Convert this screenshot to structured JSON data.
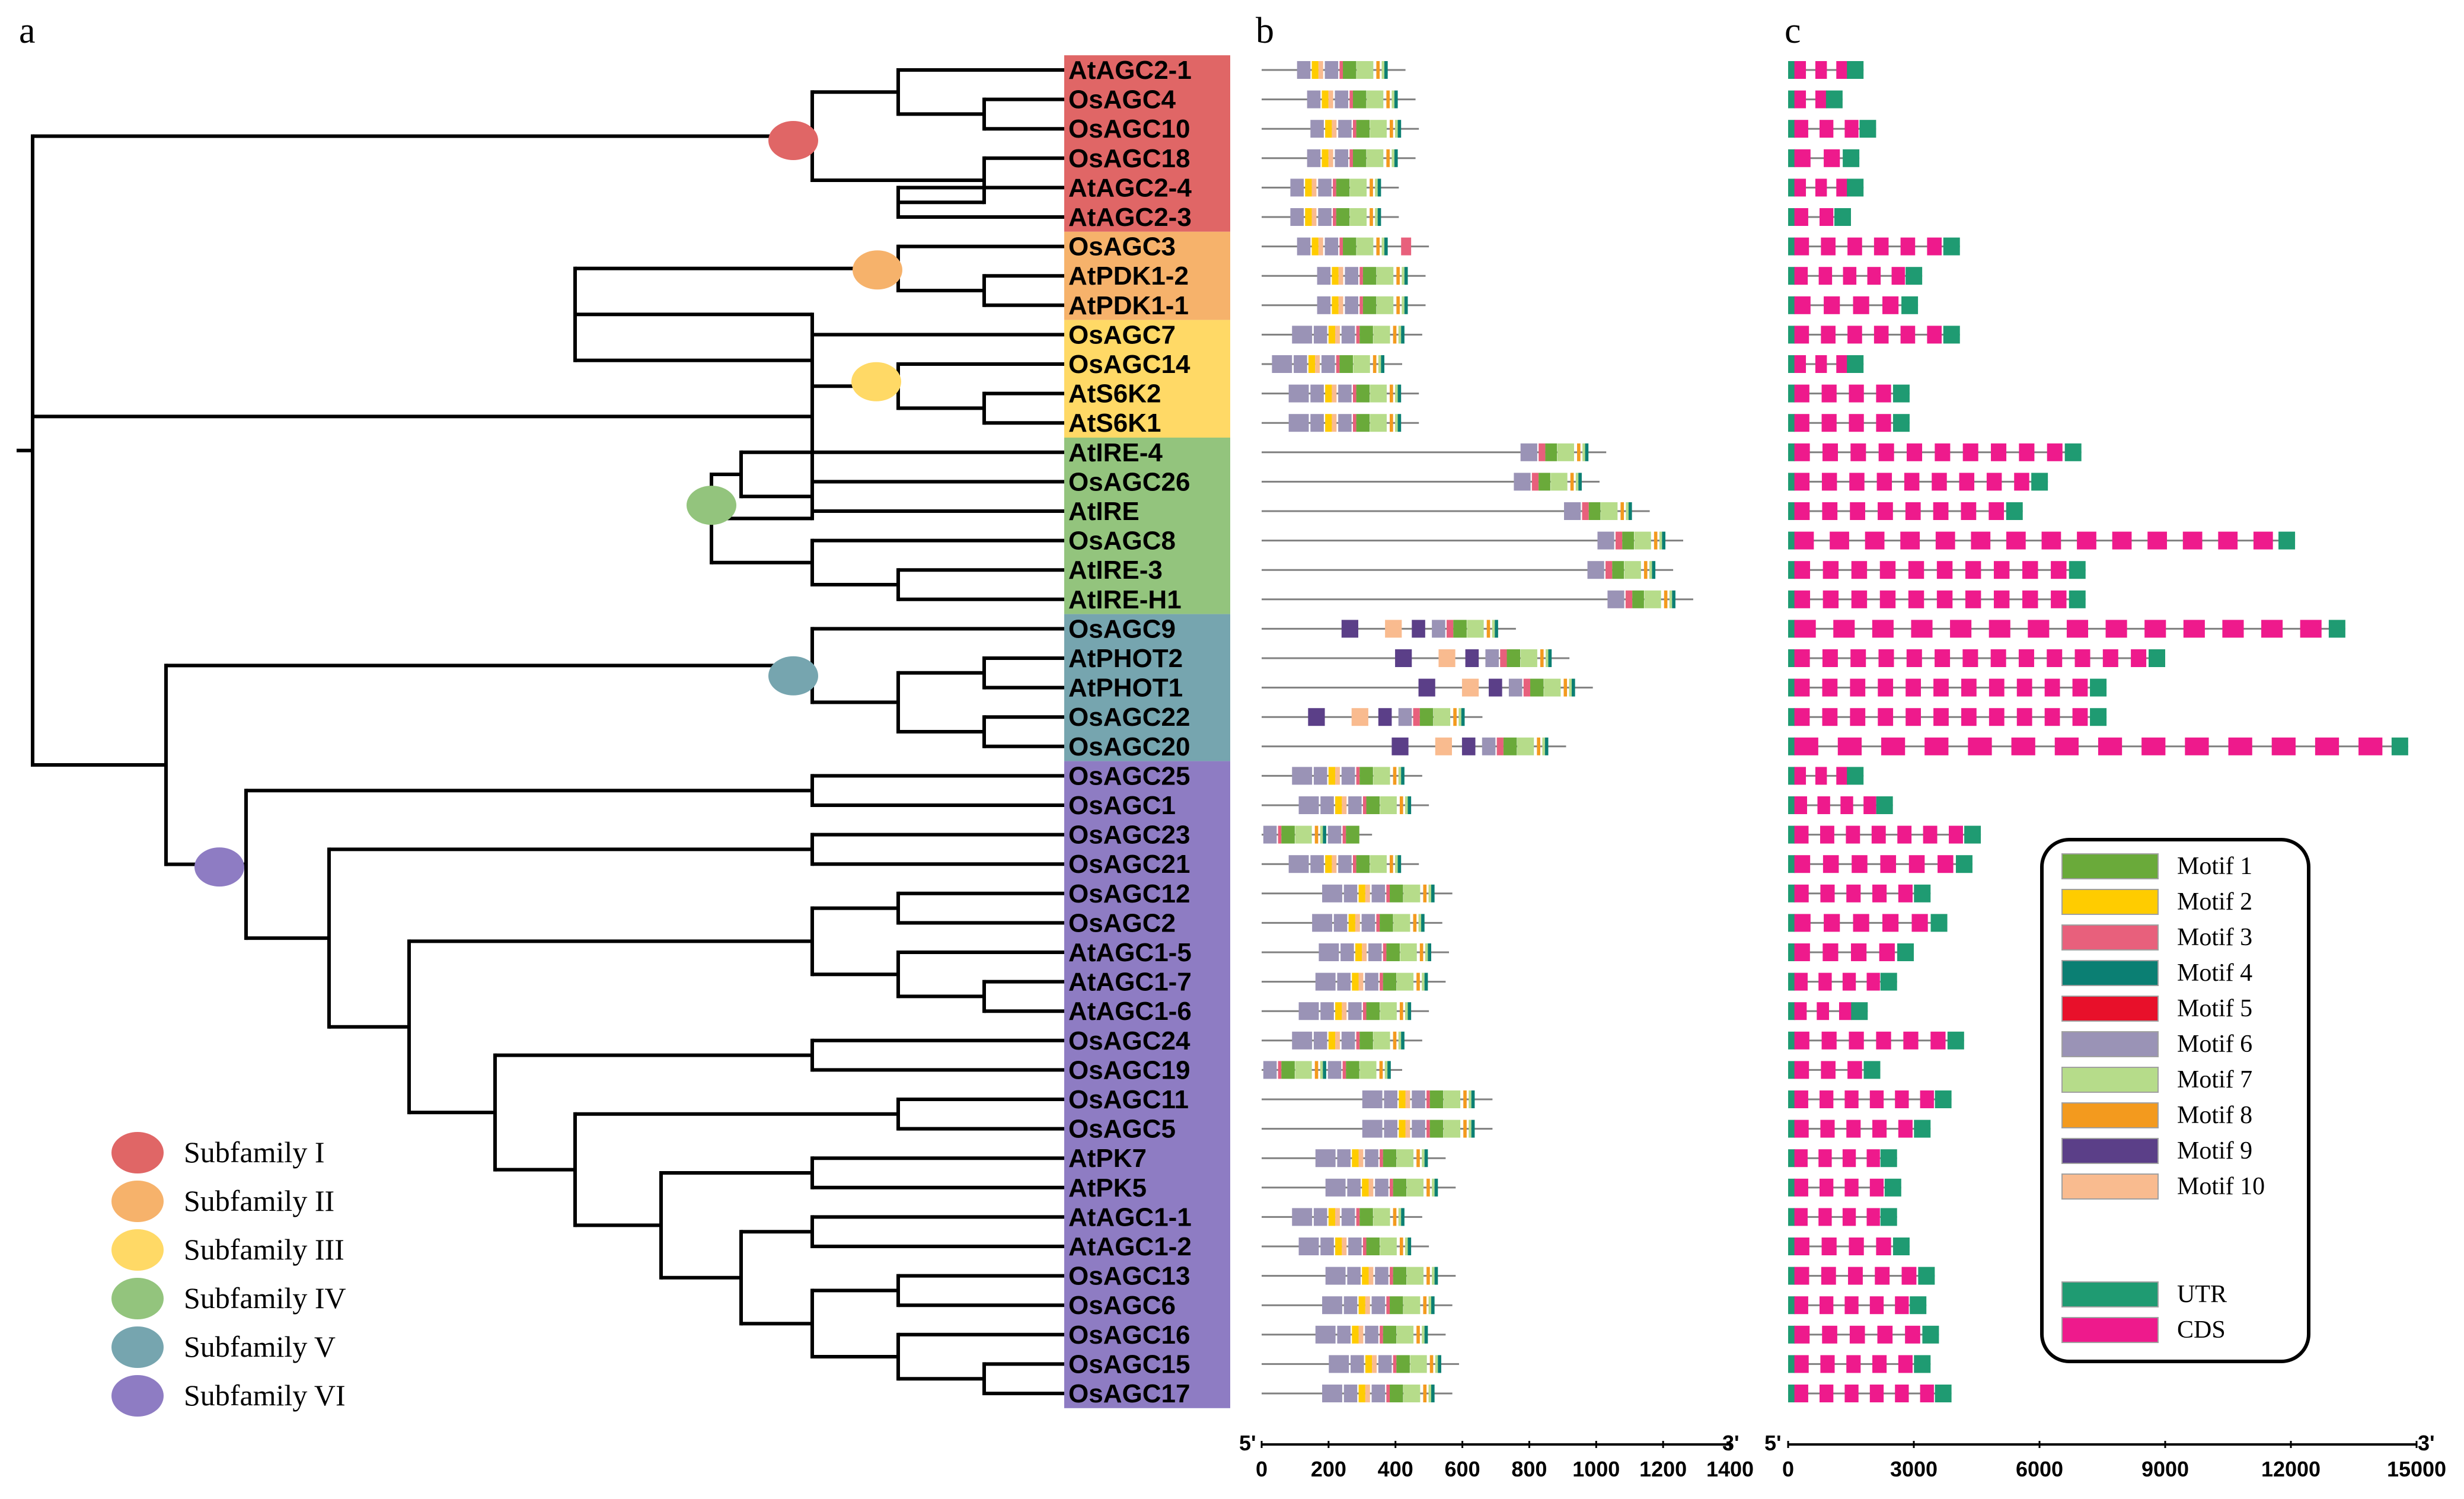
{
  "panels": {
    "a": "a",
    "b": "b",
    "c": "c"
  },
  "genes": [
    "AtAGC2-1",
    "OsAGC4",
    "OsAGC10",
    "OsAGC18",
    "AtAGC2-4",
    "AtAGC2-3",
    "OsAGC3",
    "AtPDK1-2",
    "AtPDK1-1",
    "OsAGC7",
    "OsAGC14",
    "AtS6K2",
    "AtS6K1",
    "AtIRE-4",
    "OsAGC26",
    "AtIRE",
    "OsAGC8",
    "AtIRE-3",
    "AtIRE-H1",
    "OsAGC9",
    "AtPHOT2",
    "AtPHOT1",
    "OsAGC22",
    "OsAGC20",
    "OsAGC25",
    "OsAGC1",
    "OsAGC23",
    "OsAGC21",
    "OsAGC12",
    "OsAGC2",
    "AtAGC1-5",
    "AtAGC1-7",
    "AtAGC1-6",
    "OsAGC24",
    "OsAGC19",
    "OsAGC11",
    "OsAGC5",
    "AtPK7",
    "AtPK5",
    "AtAGC1-1",
    "AtAGC1-2",
    "OsAGC13",
    "OsAGC6",
    "OsAGC16",
    "OsAGC15",
    "OsAGC17"
  ],
  "subfamilies": [
    {
      "name": "Subfamily I",
      "color": "#e06666",
      "rows": [
        0,
        5
      ]
    },
    {
      "name": "Subfamily II",
      "color": "#f6b26b",
      "rows": [
        6,
        8
      ]
    },
    {
      "name": "Subfamily III",
      "color": "#ffd966",
      "rows": [
        9,
        12
      ]
    },
    {
      "name": "Subfamily IV",
      "color": "#93c47d",
      "rows": [
        13,
        18
      ]
    },
    {
      "name": "Subfamily V",
      "color": "#76a5af",
      "rows": [
        19,
        23
      ]
    },
    {
      "name": "Subfamily VI",
      "color": "#8e7cc3",
      "rows": [
        24,
        45
      ]
    }
  ],
  "motif_legend": [
    {
      "name": "Motif 1",
      "color": "#6aaa3a"
    },
    {
      "name": "Motif 2",
      "color": "#ffcc00"
    },
    {
      "name": "Motif 3",
      "color": "#e8607c"
    },
    {
      "name": "Motif 4",
      "color": "#0b7f73"
    },
    {
      "name": "Motif 5",
      "color": "#e8102a"
    },
    {
      "name": "Motif 6",
      "color": "#9a93b6"
    },
    {
      "name": "Motif 7",
      "color": "#b6dc8a"
    },
    {
      "name": "Motif 8",
      "color": "#f39a1e"
    },
    {
      "name": "Motif 9",
      "color": "#5b3f88"
    },
    {
      "name": "Motif 10",
      "color": "#f9bb8f"
    }
  ],
  "structure_legend": [
    {
      "name": "UTR",
      "color": "#1f9b72"
    },
    {
      "name": "CDS",
      "color": "#ee1a8c"
    }
  ],
  "axis_b": {
    "end5": "5'",
    "end3": "3'",
    "ticks": [
      "0",
      "200",
      "400",
      "600",
      "800",
      "1000",
      "1200",
      "1400"
    ],
    "max": 1400
  },
  "axis_c": {
    "end5": "5'",
    "end3": "3'",
    "ticks": [
      "0",
      "3000",
      "6000",
      "9000",
      "12000",
      "15000"
    ],
    "max": 15000
  },
  "protein_lengths": [
    430,
    460,
    470,
    460,
    410,
    410,
    500,
    490,
    490,
    480,
    420,
    470,
    470,
    1030,
    1010,
    1160,
    1260,
    1230,
    1290,
    760,
    920,
    990,
    660,
    910,
    480,
    500,
    330,
    470,
    570,
    540,
    560,
    550,
    500,
    480,
    420,
    690,
    690,
    550,
    580,
    480,
    500,
    580,
    570,
    550,
    590,
    570
  ],
  "gene_lengths": [
    1800,
    1300,
    2100,
    1700,
    1800,
    1500,
    4100,
    3200,
    3100,
    4100,
    1800,
    2900,
    2900,
    7000,
    6200,
    5600,
    12100,
    7100,
    7100,
    13300,
    9000,
    7600,
    7600,
    14800,
    1800,
    2500,
    4600,
    4400,
    3400,
    3800,
    3000,
    2600,
    1900,
    4200,
    2200,
    3900,
    3400,
    2600,
    2700,
    2600,
    2900,
    3500,
    3300,
    3600,
    3400,
    3900
  ]
}
